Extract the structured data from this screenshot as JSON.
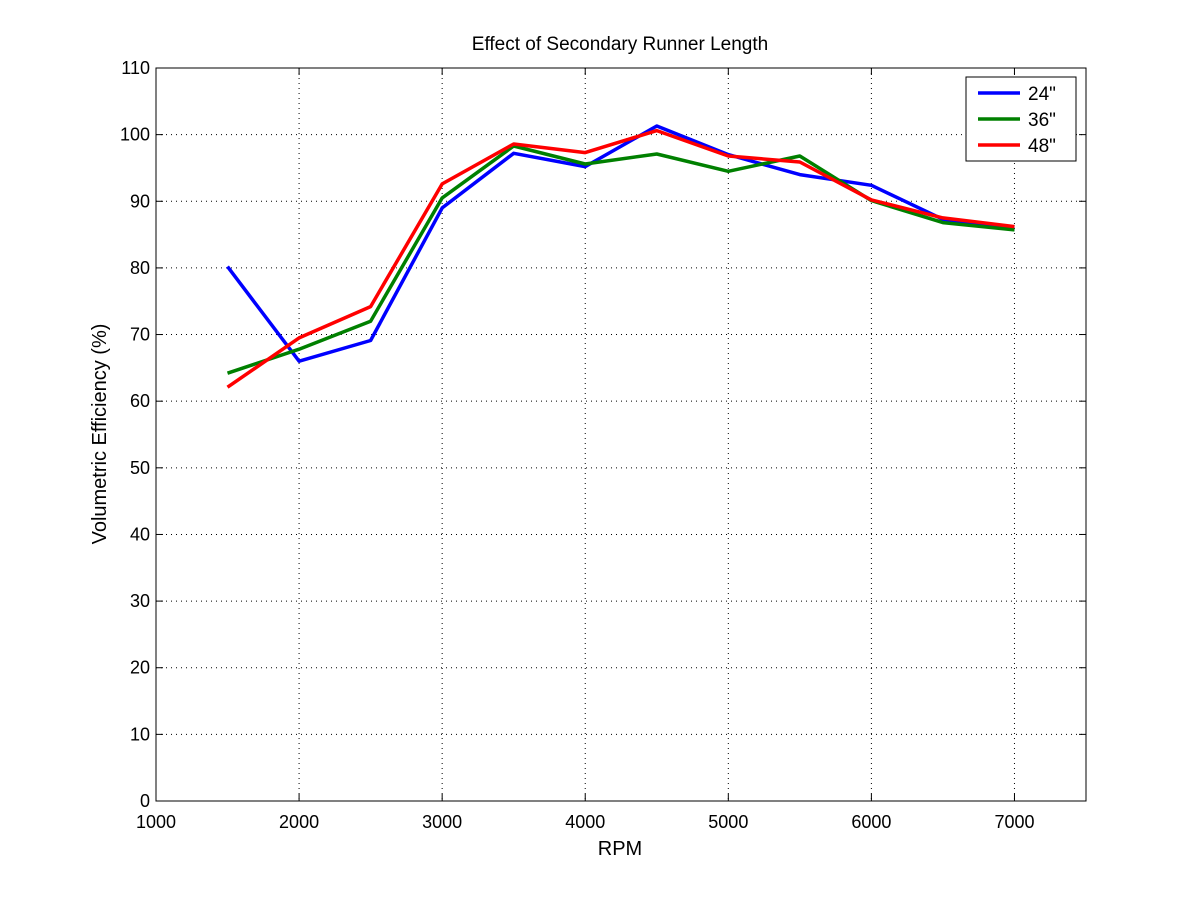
{
  "chart_data": {
    "type": "line",
    "title": "Effect of Secondary Runner Length",
    "xlabel": "RPM",
    "ylabel": "Volumetric Efficiency (%)",
    "xlim": [
      1000,
      7500
    ],
    "ylim": [
      0,
      110
    ],
    "xticks": [
      1000,
      2000,
      3000,
      4000,
      5000,
      6000,
      7000
    ],
    "yticks": [
      0,
      10,
      20,
      30,
      40,
      50,
      60,
      70,
      80,
      90,
      100,
      110
    ],
    "grid": true,
    "legend_position": "top-right",
    "x": [
      1500,
      2000,
      2500,
      3000,
      3500,
      4000,
      4500,
      5000,
      5500,
      6000,
      6500,
      7000
    ],
    "series": [
      {
        "name": "24\"",
        "color": "#0000ff",
        "values": [
          80.2,
          66.0,
          69.1,
          89.0,
          97.2,
          95.2,
          101.3,
          97.0,
          94.0,
          92.4,
          87.3,
          85.8
        ]
      },
      {
        "name": "36\"",
        "color": "#008000",
        "values": [
          64.2,
          67.8,
          72.0,
          90.5,
          98.3,
          95.6,
          97.1,
          94.5,
          96.8,
          90.1,
          86.8,
          85.7
        ]
      },
      {
        "name": "48\"",
        "color": "#ff0000",
        "values": [
          62.1,
          69.5,
          74.2,
          92.6,
          98.6,
          97.3,
          100.6,
          96.8,
          95.9,
          90.2,
          87.5,
          86.2
        ]
      }
    ]
  }
}
